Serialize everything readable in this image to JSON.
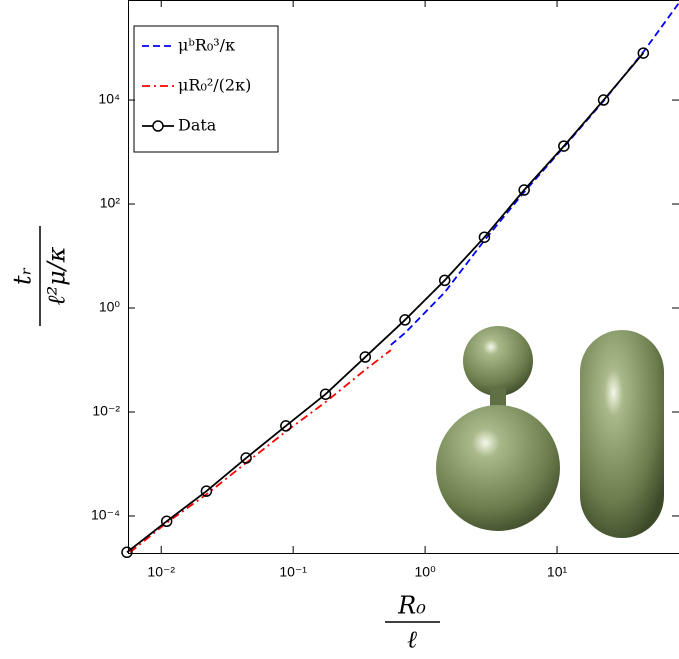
{
  "chart_data": {
    "type": "line",
    "xlabel_numerator": "R₀",
    "xlabel_denominator": "ℓ",
    "ylabel_numerator": "tᵣ",
    "ylabel_denominator": "ℓ²μ/κ",
    "log_x": true,
    "log_y": true,
    "legend": "top-left",
    "xlim": [
      0.0056,
      84
    ],
    "ylim": [
      1.94e-05,
      840000
    ],
    "xticks": [
      {
        "value": 0.01,
        "label": "10⁻²"
      },
      {
        "value": 0.1,
        "label": "10⁻¹"
      },
      {
        "value": 1,
        "label": "10⁰"
      },
      {
        "value": 10,
        "label": "10¹"
      }
    ],
    "yticks": [
      {
        "value": 0.0001,
        "label": "10⁻⁴"
      },
      {
        "value": 0.01,
        "label": "10⁻²"
      },
      {
        "value": 1,
        "label": "10⁰"
      },
      {
        "value": 100,
        "label": "10²"
      },
      {
        "value": 10000,
        "label": "10⁴"
      }
    ],
    "series": [
      {
        "name": "μᵇR₀³/κ",
        "color": "#0000ff",
        "linestyle": "dashed",
        "x": [
          0.55,
          0.704,
          1.408,
          2.816,
          5.632,
          11.26,
          22.53,
          45.06,
          84
        ],
        "values": [
          0.195,
          0.33,
          2.0,
          20,
          170,
          1250,
          9600,
          84000,
          740000
        ]
      },
      {
        "name": "μR₀²/(2κ)",
        "color": "#ff0000",
        "linestyle": "dashdot",
        "x": [
          0.0058,
          0.011,
          0.022,
          0.044,
          0.088,
          0.176,
          0.352,
          0.55
        ],
        "values": [
          2e-05,
          7.4e-05,
          0.00026,
          0.00105,
          0.0042,
          0.0155,
          0.065,
          0.155
        ]
      },
      {
        "name": "Data",
        "color": "#000000",
        "linestyle": "solid",
        "marker": "circle",
        "x": [
          0.0055,
          0.011,
          0.022,
          0.044,
          0.088,
          0.176,
          0.352,
          0.704,
          1.408,
          2.816,
          5.632,
          11.26,
          22.53,
          45.06
        ],
        "values": [
          2e-05,
          7.9e-05,
          0.0003,
          0.0013,
          0.0054,
          0.022,
          0.114,
          0.59,
          3.4,
          23,
          186,
          1300,
          10000,
          80000
        ]
      }
    ]
  }
}
